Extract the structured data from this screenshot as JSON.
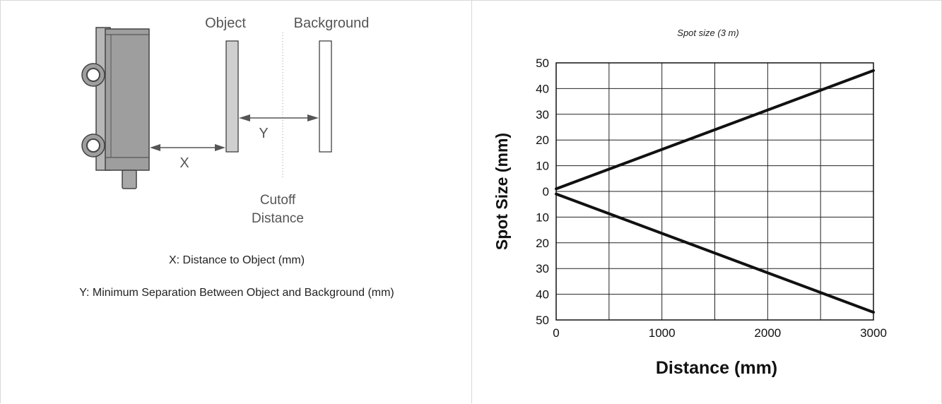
{
  "left_panel": {
    "labels": {
      "object": "Object",
      "background": "Background",
      "x": "X",
      "y": "Y",
      "cutoff_line1": "Cutoff",
      "cutoff_line2": "Distance"
    },
    "captions": {
      "x_caption": "X: Distance to Object (mm)",
      "y_caption": "Y: Minimum Separation Between Object and Background (mm)"
    }
  },
  "chart_data": {
    "type": "line",
    "title": "Spot size (3 m)",
    "xlabel": "Distance (mm)",
    "ylabel": "Spot Size (mm)",
    "xlim": [
      0,
      3000
    ],
    "ylim": [
      -50,
      50
    ],
    "x_ticks": [
      0,
      500,
      1000,
      1500,
      2000,
      2500,
      3000
    ],
    "x_tick_labels": [
      "0",
      "",
      "1000",
      "",
      "2000",
      "",
      "3000"
    ],
    "y_ticks": [
      50,
      40,
      30,
      20,
      10,
      0,
      -10,
      -20,
      -30,
      -40,
      -50
    ],
    "y_tick_labels": [
      "50",
      "40",
      "30",
      "20",
      "10",
      "0",
      "10",
      "20",
      "30",
      "40",
      "50"
    ],
    "grid": true,
    "series": [
      {
        "x": [
          0,
          3000
        ],
        "y": [
          1,
          47
        ]
      },
      {
        "x": [
          0,
          3000
        ],
        "y": [
          -1,
          -47
        ]
      }
    ],
    "line_color": "#111111"
  }
}
